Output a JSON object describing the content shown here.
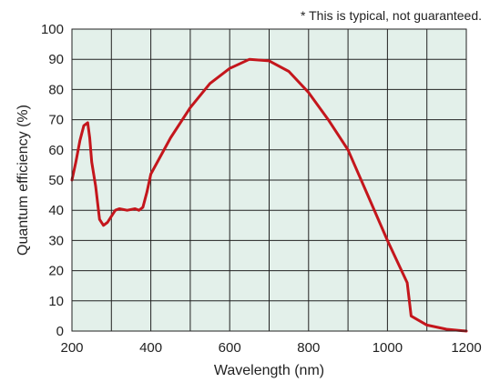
{
  "chart_data": {
    "type": "line",
    "title": "",
    "annotation": "* This is typical, not guaranteed.",
    "xlabel": "Wavelength (nm)",
    "ylabel": "Quantum efficiency (%)",
    "xlim": [
      200,
      1200
    ],
    "ylim": [
      0,
      100
    ],
    "grid": true,
    "legend": "none",
    "x_ticks": [
      200,
      400,
      600,
      800,
      1000,
      1200
    ],
    "y_ticks": [
      0,
      10,
      20,
      30,
      40,
      50,
      60,
      70,
      80,
      90,
      100
    ],
    "colors": {
      "plot_background": "#e3f0ea",
      "line": "#c4161c",
      "grid": "#222222"
    },
    "series": [
      {
        "x": [
          200,
          210,
          220,
          230,
          240,
          245,
          250,
          260,
          270,
          280,
          290,
          300,
          310,
          320,
          340,
          360,
          370,
          380,
          390,
          400,
          450,
          500,
          550,
          600,
          650,
          700,
          750,
          800,
          850,
          900,
          950,
          1000,
          1050,
          1060,
          1100,
          1150,
          1180,
          1200
        ],
        "y": [
          50,
          56,
          63,
          68,
          69,
          64,
          56,
          48,
          37,
          35,
          36,
          38,
          40,
          40.5,
          40,
          40.5,
          40,
          41,
          46,
          52,
          64,
          74,
          82,
          87,
          90,
          89.5,
          86,
          79,
          70,
          60,
          45,
          30,
          16,
          5,
          2,
          0.6,
          0.2,
          0
        ]
      }
    ]
  }
}
